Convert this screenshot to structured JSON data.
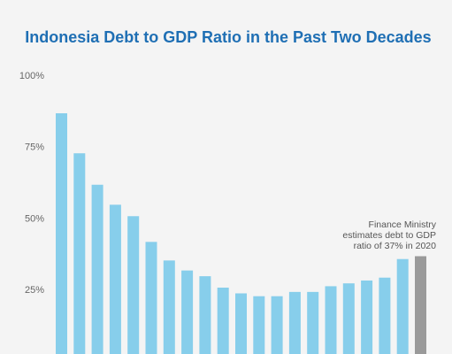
{
  "chart_data": {
    "type": "bar",
    "title": "Indonesia Debt to GDP Ratio in the Past Two Decades",
    "values": [
      87,
      73,
      62,
      55,
      51,
      42,
      35.5,
      32,
      30,
      26,
      24,
      23,
      23,
      24.5,
      24.5,
      26.5,
      27.5,
      28.5,
      29.5,
      36,
      37
    ],
    "colors": [
      "#87ceeb",
      "#87ceeb",
      "#87ceeb",
      "#87ceeb",
      "#87ceeb",
      "#87ceeb",
      "#87ceeb",
      "#87ceeb",
      "#87ceeb",
      "#87ceeb",
      "#87ceeb",
      "#87ceeb",
      "#87ceeb",
      "#87ceeb",
      "#87ceeb",
      "#87ceeb",
      "#87ceeb",
      "#87ceeb",
      "#87ceeb",
      "#87ceeb",
      "#9a9a9a"
    ],
    "ylim": [
      0,
      100
    ],
    "yticks": [
      {
        "value": 25,
        "label": "25%"
      },
      {
        "value": 50,
        "label": "50%"
      },
      {
        "value": 75,
        "label": "75%"
      },
      {
        "value": 100,
        "label": "100%"
      }
    ],
    "grid": false,
    "annotation": [
      "Finance Ministry",
      "estimates debt to GDP",
      "ratio of 37% in 2020"
    ]
  }
}
